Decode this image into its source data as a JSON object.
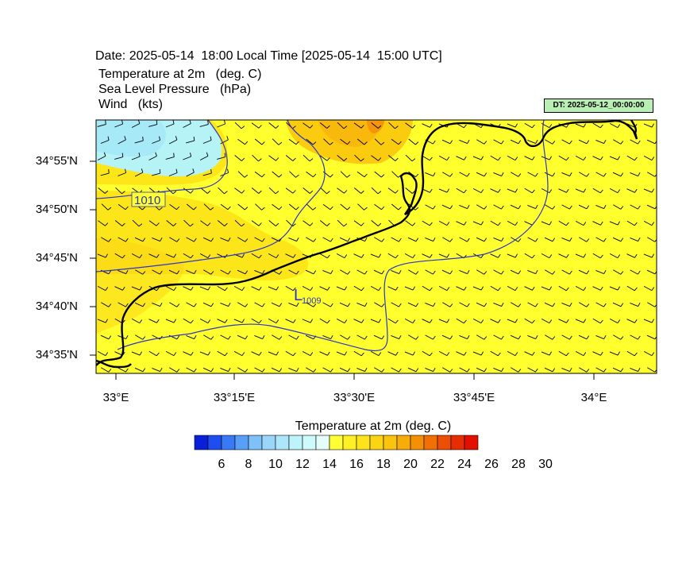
{
  "header": {
    "title": "Date: 2025-05-14  18:00 Local Time [2025-05-14  15:00 UTC]",
    "var1": "Temperature at 2m   (deg. C)",
    "var2": "Sea Level Pressure   (hPa)",
    "var3": "Wind   (kts)",
    "dt_label": "DT: 2025-05-12_00:00:00"
  },
  "map": {
    "lat_labels": [
      "34°55'N",
      "34°50'N",
      "34°45'N",
      "34°40'N",
      "34°35'N"
    ],
    "lon_labels": [
      "33°E",
      "33°15'E",
      "33°30'E",
      "33°45'E",
      "34°E"
    ],
    "isobar_labels": [
      "1010"
    ],
    "low_marker": {
      "symbol": "L",
      "value": "1009"
    },
    "colors": {
      "land_warm": "#ffff2e",
      "mid": "#fce61a",
      "orange": "#fbbd0e",
      "cool": "#b5f3f6",
      "isobar": "#2b35c9",
      "coast": "#000000"
    }
  },
  "colorbar": {
    "title": "Temperature at 2m  (deg. C)",
    "labels": [
      "6",
      "8",
      "10",
      "12",
      "14",
      "16",
      "18",
      "20",
      "22",
      "24",
      "26",
      "28",
      "30"
    ],
    "colors": [
      "#0a20d8",
      "#1f4ef0",
      "#3a79f5",
      "#5a9ff7",
      "#7ec0f8",
      "#99d6f9",
      "#ade6fa",
      "#bdf3fb",
      "#cffafb",
      "#e4fdfb",
      "#ffff33",
      "#ffef25",
      "#fde31c",
      "#fbd414",
      "#fac30e",
      "#f8ac09",
      "#f49006",
      "#f07004",
      "#ec4e03",
      "#e72e02",
      "#e30f01"
    ]
  }
}
